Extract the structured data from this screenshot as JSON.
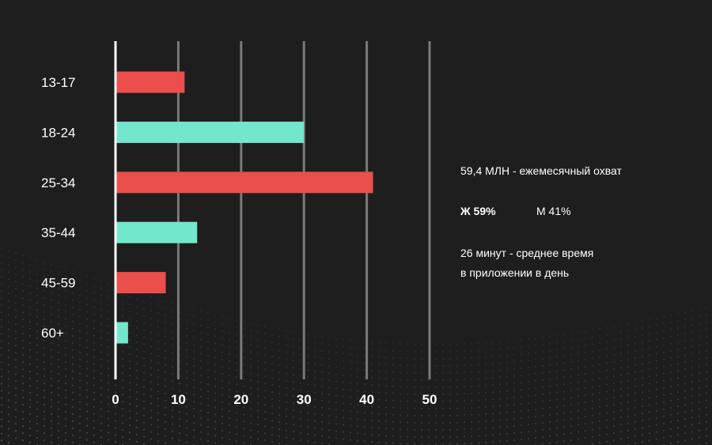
{
  "chart_data": {
    "type": "bar",
    "orientation": "horizontal",
    "categories": [
      "13-17",
      "18-24",
      "25-34",
      "35-44",
      "45-59",
      "60+"
    ],
    "values": [
      11,
      30,
      41,
      13,
      8,
      2
    ],
    "xlim": [
      0,
      50
    ],
    "xticks": [
      0,
      10,
      20,
      30,
      40,
      50
    ],
    "grid": true,
    "bar_colors": [
      "#ea4f4b",
      "#72e7cc",
      "#ea4f4b",
      "#72e7cc",
      "#ea4f4b",
      "#72e7cc"
    ],
    "title": "",
    "xlabel": "",
    "ylabel": ""
  },
  "info": {
    "reach": "59,4 МЛН - ежемесячный охват",
    "female": "Ж 59%",
    "male": "М 41%",
    "time_line1": "26 минут - среднее время",
    "time_line2": "в приложении в день"
  },
  "colors": {
    "background": "#1e1e1e",
    "grid": "#7a7a7a",
    "axis": "#ffffff",
    "text": "#ffffff"
  }
}
